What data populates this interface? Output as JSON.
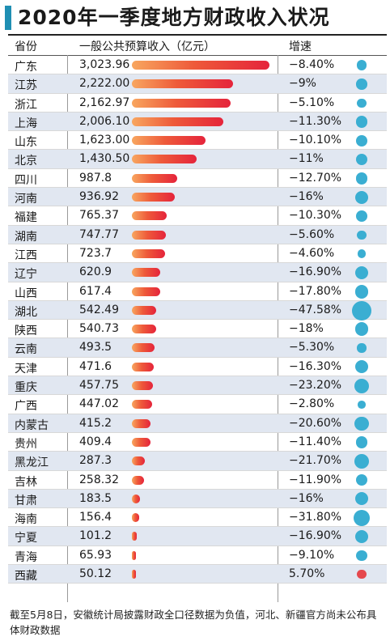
{
  "title": "2020年一季度地方财政收入状况",
  "header": {
    "province": "省份",
    "revenue": "一般公共预算收入（亿元）",
    "growth": "增速"
  },
  "footnote": "截至5月8日，安徽统计局披露财政全口径数据为负值，河北、新疆官方尚未公布具体财政数据",
  "colors": {
    "accent": "#1f8fb3",
    "dot_negative": "#3aaed2",
    "dot_positive": "#e5484d",
    "bar_start": "#f8a65f",
    "bar_end": "#e5243b",
    "row_alt": "#e1e7f1"
  },
  "chart_data": {
    "type": "table",
    "title": "2020年一季度地方财政收入状况",
    "columns": [
      "省份",
      "一般公共预算收入（亿元）",
      "增速"
    ],
    "rows": [
      {
        "province": "广东",
        "revenue": 3023.96,
        "revenue_label": "3,023.96",
        "growth": -8.4,
        "growth_label": "−8.40%"
      },
      {
        "province": "江苏",
        "revenue": 2222.0,
        "revenue_label": "2,222.00",
        "growth": -9,
        "growth_label": "−9%"
      },
      {
        "province": "浙江",
        "revenue": 2162.97,
        "revenue_label": "2,162.97",
        "growth": -5.1,
        "growth_label": "−5.10%"
      },
      {
        "province": "上海",
        "revenue": 2006.1,
        "revenue_label": "2,006.10",
        "growth": -11.3,
        "growth_label": "−11.30%"
      },
      {
        "province": "山东",
        "revenue": 1623.0,
        "revenue_label": "1,623.00",
        "growth": -10.1,
        "growth_label": "−10.10%"
      },
      {
        "province": "北京",
        "revenue": 1430.5,
        "revenue_label": "1,430.50",
        "growth": -11,
        "growth_label": "−11%"
      },
      {
        "province": "四川",
        "revenue": 987.8,
        "revenue_label": "987.8",
        "growth": -12.7,
        "growth_label": "−12.70%"
      },
      {
        "province": "河南",
        "revenue": 936.92,
        "revenue_label": "936.92",
        "growth": -16,
        "growth_label": "−16%"
      },
      {
        "province": "福建",
        "revenue": 765.37,
        "revenue_label": "765.37",
        "growth": -10.3,
        "growth_label": "−10.30%"
      },
      {
        "province": "湖南",
        "revenue": 747.77,
        "revenue_label": "747.77",
        "growth": -5.6,
        "growth_label": "−5.60%"
      },
      {
        "province": "江西",
        "revenue": 723.7,
        "revenue_label": "723.7",
        "growth": -4.6,
        "growth_label": "−4.60%"
      },
      {
        "province": "辽宁",
        "revenue": 620.9,
        "revenue_label": "620.9",
        "growth": -16.9,
        "growth_label": "−16.90%"
      },
      {
        "province": "山西",
        "revenue": 617.4,
        "revenue_label": "617.4",
        "growth": -17.8,
        "growth_label": "−17.80%"
      },
      {
        "province": "湖北",
        "revenue": 542.49,
        "revenue_label": "542.49",
        "growth": -47.58,
        "growth_label": "−47.58%"
      },
      {
        "province": "陕西",
        "revenue": 540.73,
        "revenue_label": "540.73",
        "growth": -18,
        "growth_label": "−18%"
      },
      {
        "province": "云南",
        "revenue": 493.5,
        "revenue_label": "493.5",
        "growth": -5.3,
        "growth_label": "−5.30%"
      },
      {
        "province": "天津",
        "revenue": 471.6,
        "revenue_label": "471.6",
        "growth": -16.3,
        "growth_label": "−16.30%"
      },
      {
        "province": "重庆",
        "revenue": 457.75,
        "revenue_label": "457.75",
        "growth": -23.2,
        "growth_label": "−23.20%"
      },
      {
        "province": "广西",
        "revenue": 447.02,
        "revenue_label": "447.02",
        "growth": -2.8,
        "growth_label": "−2.80%"
      },
      {
        "province": "内蒙古",
        "revenue": 415.2,
        "revenue_label": "415.2",
        "growth": -20.6,
        "growth_label": "−20.60%"
      },
      {
        "province": "贵州",
        "revenue": 409.4,
        "revenue_label": "409.4",
        "growth": -11.4,
        "growth_label": "−11.40%"
      },
      {
        "province": "黑龙江",
        "revenue": 287.3,
        "revenue_label": "287.3",
        "growth": -21.7,
        "growth_label": "−21.70%"
      },
      {
        "province": "吉林",
        "revenue": 258.32,
        "revenue_label": "258.32",
        "growth": -11.9,
        "growth_label": "−11.90%"
      },
      {
        "province": "甘肃",
        "revenue": 183.5,
        "revenue_label": "183.5",
        "growth": -16,
        "growth_label": "−16%"
      },
      {
        "province": "海南",
        "revenue": 156.4,
        "revenue_label": "156.4",
        "growth": -31.8,
        "growth_label": "−31.80%"
      },
      {
        "province": "宁夏",
        "revenue": 101.2,
        "revenue_label": "101.2",
        "growth": -16.9,
        "growth_label": "−16.90%"
      },
      {
        "province": "青海",
        "revenue": 65.93,
        "revenue_label": "65.93",
        "growth": -9.1,
        "growth_label": "−9.10%"
      },
      {
        "province": "西藏",
        "revenue": 50.12,
        "revenue_label": "50.12",
        "growth": 5.7,
        "growth_label": "5.70%"
      }
    ]
  }
}
